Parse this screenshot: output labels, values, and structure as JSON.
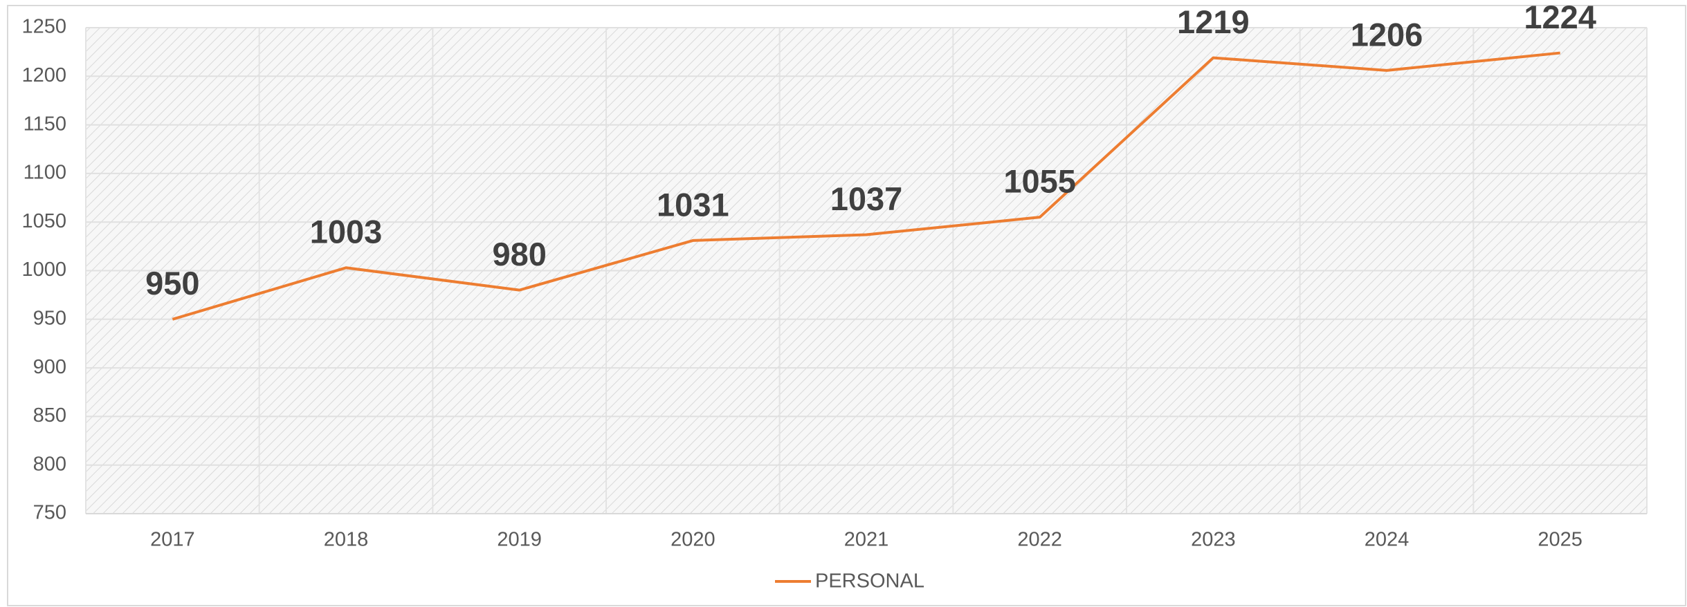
{
  "chart_data": {
    "type": "line",
    "categories": [
      "2017",
      "2018",
      "2019",
      "2020",
      "2021",
      "2022",
      "2023",
      "2024",
      "2025"
    ],
    "series": [
      {
        "name": "PERSONAL",
        "color": "#ed7d31",
        "values": [
          950,
          1003,
          980,
          1031,
          1037,
          1055,
          1219,
          1206,
          1224
        ]
      }
    ],
    "ylim": [
      750,
      1250
    ],
    "yticks": [
      750,
      800,
      850,
      900,
      950,
      1000,
      1050,
      1100,
      1150,
      1200,
      1250
    ],
    "grid": true,
    "legend": "bottom",
    "data_labels": true
  }
}
